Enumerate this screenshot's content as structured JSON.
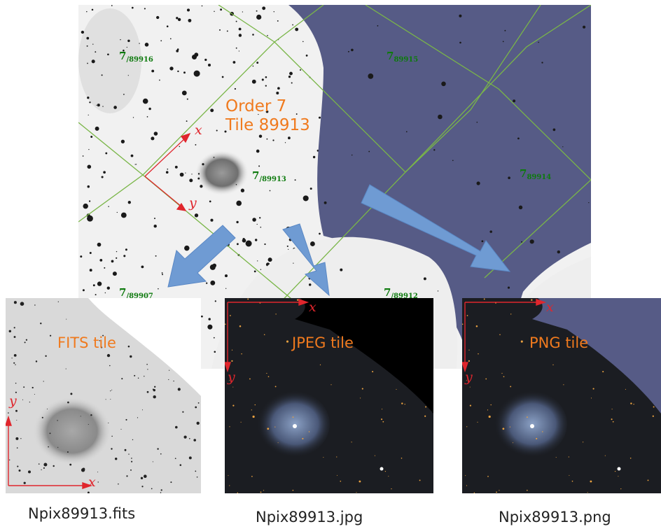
{
  "main_map": {
    "order_label_line1": "Order 7",
    "order_label_line2": "Tile 89913",
    "axis_x": "x",
    "axis_y": "y",
    "tiles": [
      {
        "order": "7",
        "id": "/89916"
      },
      {
        "order": "7",
        "id": "89915"
      },
      {
        "order": "7",
        "id": "/89913"
      },
      {
        "order": "7",
        "id": "89914"
      },
      {
        "order": "7",
        "id": "/89907"
      },
      {
        "order": "7",
        "id": "/89912"
      }
    ]
  },
  "panels": {
    "fits": {
      "title": "FITS tile",
      "caption": "Npix89913.fits",
      "axis_x": "x",
      "axis_y": "y"
    },
    "jpeg": {
      "title": "JPEG tile",
      "caption": "Npix89913.jpg",
      "axis_x": "x",
      "axis_y": "y"
    },
    "png": {
      "title": "PNG tile",
      "caption": "Npix89913.png",
      "axis_x": "x",
      "axis_y": "y"
    }
  },
  "colors": {
    "background_sky": "#f0f0f0",
    "empty_sky": "#565b86",
    "grid_line": "#7ab648",
    "arrow": "#6f9bd3",
    "axis": "#e0262d",
    "label_orange": "#f07a1e",
    "tile_id_green": "#0d7a0d"
  }
}
